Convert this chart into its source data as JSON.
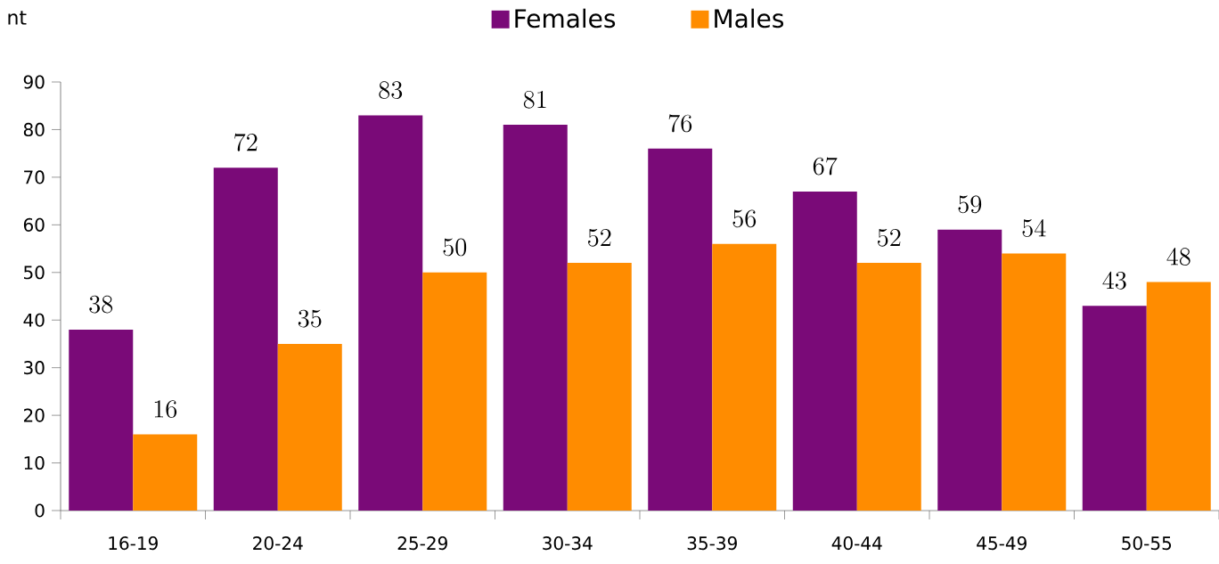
{
  "chart_data": {
    "type": "bar",
    "ylabel": "nt",
    "categories": [
      "16-19",
      "20-24",
      "25-29",
      "30-34",
      "35-39",
      "40-44",
      "45-49",
      "50-55"
    ],
    "series": [
      {
        "name": "Females",
        "color": "#7a0a78",
        "values": [
          38,
          72,
          83,
          81,
          76,
          67,
          59,
          43
        ]
      },
      {
        "name": "Males",
        "color": "#ff8c00",
        "values": [
          16,
          35,
          50,
          52,
          56,
          52,
          54,
          48
        ]
      }
    ],
    "ylim": [
      0,
      90
    ],
    "yticks": [
      0,
      10,
      20,
      30,
      40,
      50,
      60,
      70,
      80,
      90
    ],
    "data_labels": true,
    "legend": "top",
    "grid": false
  }
}
